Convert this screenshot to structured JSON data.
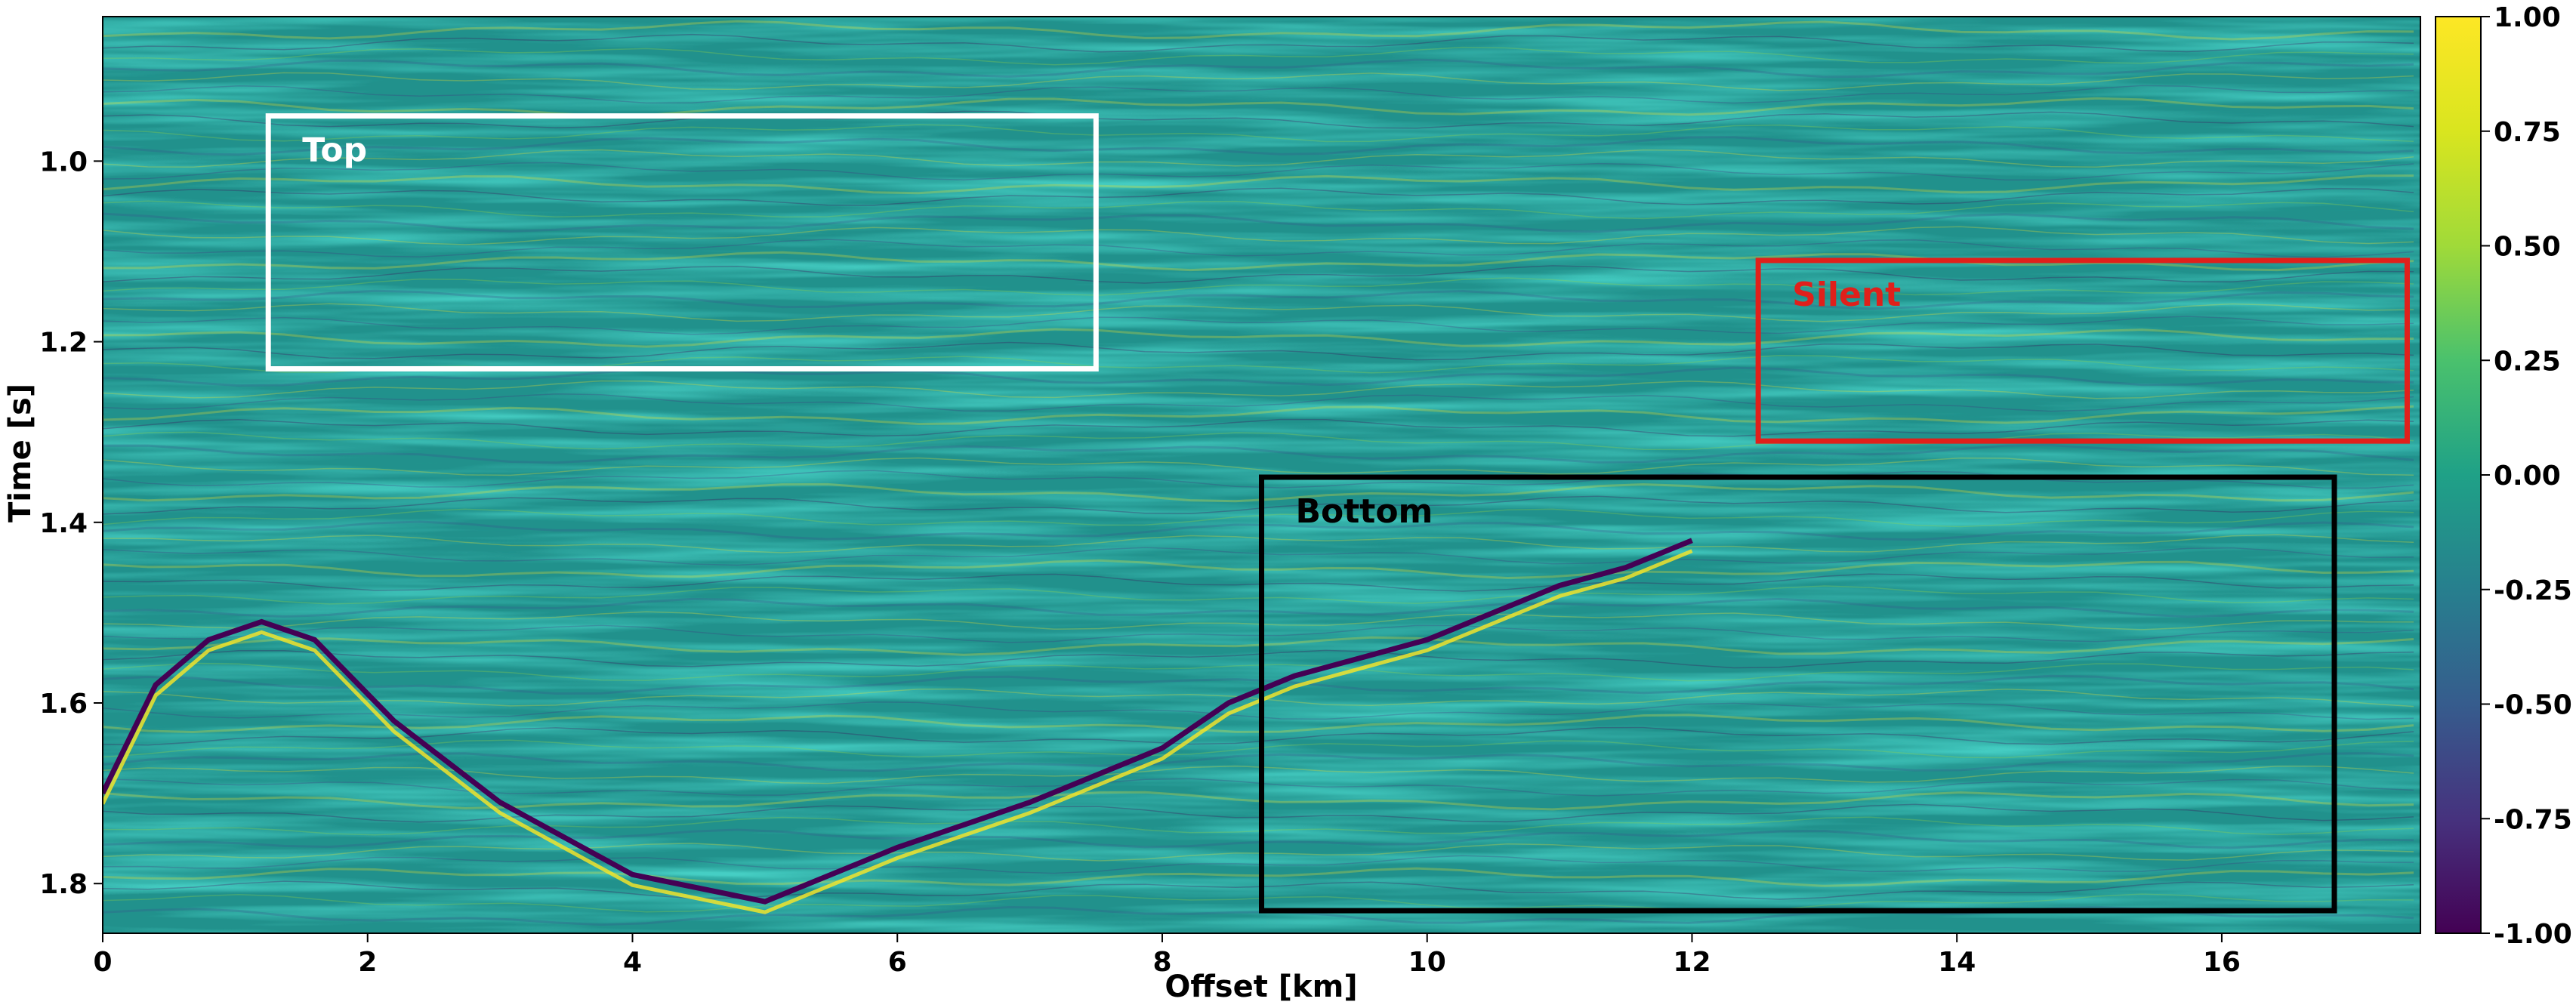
{
  "chart_data": {
    "type": "heatmap",
    "xlabel": "Offset [km]",
    "ylabel": "Time [s]",
    "xlim": [
      0,
      17.5
    ],
    "ylim": [
      0.84,
      1.855
    ],
    "x_ticks": [
      "0",
      "2",
      "4",
      "6",
      "8",
      "10",
      "12",
      "14",
      "16"
    ],
    "x_tick_values": [
      0,
      2,
      4,
      6,
      8,
      10,
      12,
      14,
      16
    ],
    "y_ticks": [
      "1.0",
      "1.2",
      "1.4",
      "1.6",
      "1.8"
    ],
    "y_tick_values": [
      1.0,
      1.2,
      1.4,
      1.6,
      1.8
    ],
    "colormap": "viridis",
    "colorbar": {
      "ticks": [
        "1.00",
        "0.75",
        "0.50",
        "0.25",
        "0.00",
        "-0.25",
        "-0.50",
        "-0.75",
        "-1.00"
      ],
      "tick_values": [
        1.0,
        0.75,
        0.5,
        0.25,
        0.0,
        -0.25,
        -0.5,
        -0.75,
        -1.0
      ],
      "range": [
        -1.0,
        1.0
      ]
    },
    "horizon": {
      "x": [
        0,
        0.4,
        0.8,
        1.2,
        1.6,
        2.2,
        3.0,
        4.0,
        5.0,
        6.0,
        7.0,
        8.0,
        8.5,
        9.0,
        9.5,
        10.0,
        10.5,
        11.0,
        11.5,
        12.0
      ],
      "y": [
        1.7,
        1.58,
        1.53,
        1.51,
        1.53,
        1.62,
        1.71,
        1.79,
        1.82,
        1.76,
        1.71,
        1.65,
        1.6,
        1.57,
        1.55,
        1.53,
        1.5,
        1.47,
        1.45,
        1.42
      ]
    },
    "annotations": [
      {
        "label": "Top",
        "color": "#ffffff",
        "x_range": [
          1.25,
          7.5
        ],
        "y_range": [
          0.95,
          1.23
        ]
      },
      {
        "label": "Silent",
        "color": "#e0201b",
        "x_range": [
          12.5,
          17.4
        ],
        "y_range": [
          1.11,
          1.31
        ]
      },
      {
        "label": "Bottom",
        "color": "#000000",
        "x_range": [
          8.75,
          16.85
        ],
        "y_range": [
          1.35,
          1.83
        ]
      }
    ]
  }
}
